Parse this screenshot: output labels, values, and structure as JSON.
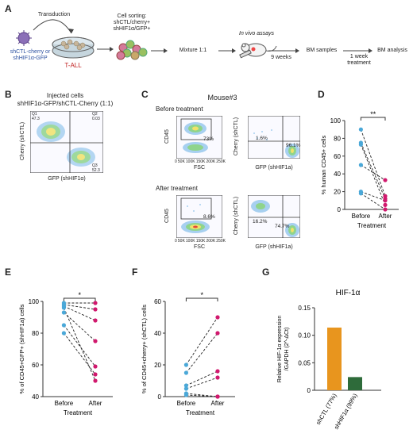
{
  "panels": {
    "a": "A",
    "b": "B",
    "c": "C",
    "d": "D",
    "e": "E",
    "f": "F",
    "g": "G"
  },
  "panel_a": {
    "transduction": "Transduction",
    "vectors": "shCTL-cherry or\nshHIF1α-GFP",
    "tall": "T-ALL",
    "sorting": "Cell sorting:\nshCTL/cherry+\nshHIF1α/GFP+",
    "mixture": "Mixture 1:1",
    "in_vivo": "In vivo assays",
    "weeks": "9 weeks",
    "bm_samples": "BM samples",
    "treatment": "1 week\ntreatment",
    "bm_analysis": "BM analysis"
  },
  "panel_b": {
    "title1": "Injected cells",
    "title2": "shHIF1α-GFP/shCTL-Cherry (1:1)",
    "ylabel": "Cherry (shCTL)",
    "xlabel": "GFP (shHIF1α)",
    "q_ul": "Q1\n47.3",
    "q_ur": "Q2\n0.03",
    "q_lr": "Q3\n52.3"
  },
  "panel_c": {
    "mouse": "Mouse#3",
    "before": "Before treatment",
    "after": "After treatment",
    "fsc": "FSC",
    "cd45": "CD45",
    "cherry": "Cherry (shCTL)",
    "gfp": "GFP (shHIF1a)",
    "fsc_ticks": [
      "0",
      "50K",
      "100K",
      "150K",
      "200K",
      "250K"
    ],
    "before_gate": "73%",
    "before_q1": "1.6%",
    "before_q3": "96.1%",
    "after_gate": "8.6%",
    "after_q1": "16.2%",
    "after_q3": "74.7%"
  },
  "chart_data": [
    {
      "id": "D",
      "type": "scatter",
      "ylabel": "% human CD45+ cells",
      "xlabel": "Treatment",
      "categories": [
        "Before",
        "After"
      ],
      "ylim": [
        0,
        100
      ],
      "yticks": [
        0,
        20,
        40,
        60,
        80,
        100
      ],
      "significance": "**",
      "pairs": [
        [
          90,
          15
        ],
        [
          75,
          12
        ],
        [
          73,
          5
        ],
        [
          50,
          33
        ],
        [
          18,
          0
        ],
        [
          20,
          10
        ]
      ]
    },
    {
      "id": "E",
      "type": "scatter",
      "ylabel": "% of CD45+GFP+ (shHIF1a) cells",
      "xlabel": "Treatment",
      "categories": [
        "Before",
        "After"
      ],
      "ylim": [
        40,
        100
      ],
      "yticks": [
        40,
        60,
        80,
        100
      ],
      "significance": "*",
      "pairs": [
        [
          99,
          99
        ],
        [
          98,
          95
        ],
        [
          97,
          88
        ],
        [
          93,
          75
        ],
        [
          85,
          59
        ],
        [
          80,
          54
        ],
        [
          96,
          50
        ]
      ]
    },
    {
      "id": "F",
      "type": "scatter",
      "ylabel": "% of CD45+cherry+ (shCTL) cells",
      "xlabel": "Treatment",
      "categories": [
        "Before",
        "After"
      ],
      "ylim": [
        0,
        60
      ],
      "yticks": [
        0,
        20,
        40,
        60
      ],
      "significance": "*",
      "pairs": [
        [
          20,
          50
        ],
        [
          15,
          40
        ],
        [
          7,
          16
        ],
        [
          5,
          12
        ],
        [
          2,
          0
        ],
        [
          1,
          0
        ]
      ]
    },
    {
      "id": "G",
      "type": "bar",
      "title": "HIF-1α",
      "ylabel": "Relative HIF-1α expression\n/GAPDH (2^-ΔCt)",
      "categories": [
        "shCTL (77%)",
        "shHIF1α (99%)"
      ],
      "values": [
        0.114,
        0.024
      ],
      "colors": [
        "#e8951e",
        "#2e6b3a"
      ],
      "ylim": [
        0,
        0.15
      ],
      "yticks": [
        0,
        0.05,
        0.1,
        0.15
      ],
      "ytick_labels": [
        "0",
        "0.05",
        "0.10",
        "0.15"
      ]
    }
  ],
  "colors": {
    "before": "#4aa8d8",
    "after": "#d1196e",
    "cherry_cells": "#d47a9a",
    "gfp_cells": "#9ac060",
    "vessel": "#e44"
  }
}
